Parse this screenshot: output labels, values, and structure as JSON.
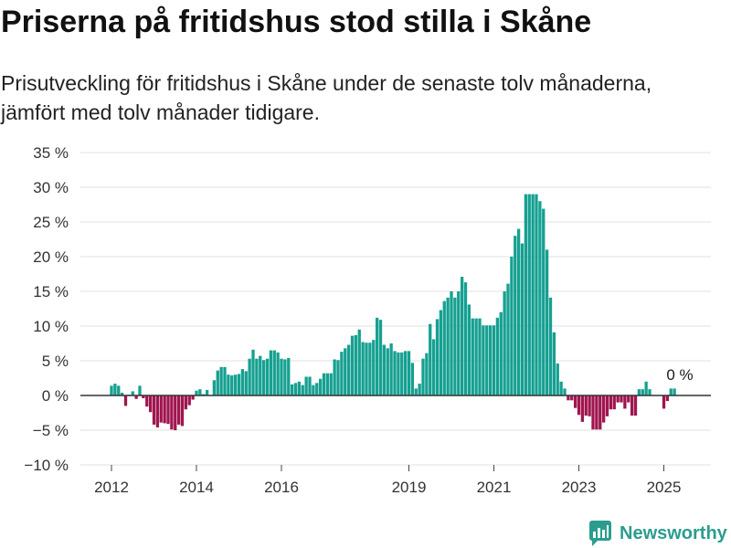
{
  "chart_data": {
    "type": "bar",
    "title": "Priserna på fritidshus stod stilla i Skåne",
    "subtitle": "Prisutveckling för fritidshus i Skåne under de senaste tolv månaderna, jämfört med tolv månader tidigare.",
    "x": [
      "2012-01",
      "2012-02",
      "2012-03",
      "2012-04",
      "2012-05",
      "2012-06",
      "2012-07",
      "2012-08",
      "2012-09",
      "2012-10",
      "2012-11",
      "2012-12",
      "2013-01",
      "2013-02",
      "2013-03",
      "2013-04",
      "2013-05",
      "2013-06",
      "2013-07",
      "2013-08",
      "2013-09",
      "2013-10",
      "2013-11",
      "2013-12",
      "2014-01",
      "2014-02",
      "2014-03",
      "2014-04",
      "2014-05",
      "2014-06",
      "2014-07",
      "2014-08",
      "2014-09",
      "2014-10",
      "2014-11",
      "2014-12",
      "2015-01",
      "2015-02",
      "2015-03",
      "2015-04",
      "2015-05",
      "2015-06",
      "2015-07",
      "2015-08",
      "2015-09",
      "2015-10",
      "2015-11",
      "2015-12",
      "2016-01",
      "2016-02",
      "2016-03",
      "2016-04",
      "2016-05",
      "2016-06",
      "2016-07",
      "2016-08",
      "2016-09",
      "2016-10",
      "2016-11",
      "2016-12",
      "2017-01",
      "2017-02",
      "2017-03",
      "2017-04",
      "2017-05",
      "2017-06",
      "2017-07",
      "2017-08",
      "2017-09",
      "2017-10",
      "2017-11",
      "2017-12",
      "2018-01",
      "2018-02",
      "2018-03",
      "2018-04",
      "2018-05",
      "2018-06",
      "2018-07",
      "2018-08",
      "2018-09",
      "2018-10",
      "2018-11",
      "2018-12",
      "2019-01",
      "2019-02",
      "2019-03",
      "2019-04",
      "2019-05",
      "2019-06",
      "2019-07",
      "2019-08",
      "2019-09",
      "2019-10",
      "2019-11",
      "2019-12",
      "2020-01",
      "2020-02",
      "2020-03",
      "2020-04",
      "2020-05",
      "2020-06",
      "2020-07",
      "2020-08",
      "2020-09",
      "2020-10",
      "2020-11",
      "2020-12",
      "2021-01",
      "2021-02",
      "2021-03",
      "2021-04",
      "2021-05",
      "2021-06",
      "2021-07",
      "2021-08",
      "2021-09",
      "2021-10",
      "2021-11",
      "2021-12",
      "2022-01",
      "2022-02",
      "2022-03",
      "2022-04",
      "2022-05",
      "2022-06",
      "2022-07",
      "2022-08",
      "2022-09",
      "2022-10",
      "2022-11",
      "2022-12",
      "2023-01",
      "2023-02",
      "2023-03",
      "2023-04",
      "2023-05",
      "2023-06",
      "2023-07",
      "2023-08",
      "2023-09",
      "2023-10",
      "2023-11",
      "2023-12",
      "2024-01",
      "2024-02",
      "2024-03",
      "2024-04",
      "2024-05",
      "2024-06",
      "2024-07",
      "2024-08",
      "2024-09",
      "2024-10",
      "2024-11",
      "2024-12",
      "2025-01",
      "2025-02",
      "2025-03",
      "2025-04",
      "2025-05"
    ],
    "values": [
      1.4,
      1.7,
      1.4,
      0.4,
      -1.5,
      0.1,
      0.6,
      -0.5,
      1.4,
      -0.4,
      -1.6,
      -2.4,
      -4.2,
      -4.6,
      -3.9,
      -4.0,
      -4.1,
      -4.9,
      -5.0,
      -4.2,
      -4.4,
      -2.0,
      -1.4,
      -0.6,
      0.7,
      0.9,
      0.2,
      0.8,
      0.0,
      2.2,
      3.6,
      4.1,
      4.1,
      3.0,
      2.9,
      3.0,
      3.1,
      3.8,
      3.5,
      5.3,
      6.6,
      5.3,
      5.7,
      5.1,
      5.3,
      6.5,
      6.5,
      6.2,
      5.3,
      5.2,
      5.4,
      1.6,
      1.8,
      2.0,
      1.5,
      2.7,
      2.7,
      1.5,
      1.8,
      2.4,
      3.2,
      3.2,
      3.2,
      5.2,
      5.1,
      6.3,
      6.8,
      7.3,
      8.6,
      8.7,
      9.5,
      7.7,
      7.6,
      7.6,
      8.0,
      11.2,
      10.9,
      7.3,
      6.8,
      7.5,
      6.4,
      6.2,
      6.2,
      6.4,
      6.4,
      4.7,
      1.0,
      1.7,
      5.3,
      6.1,
      10.3,
      8.1,
      11.0,
      12.3,
      13.6,
      14.1,
      15.0,
      14.1,
      15.0,
      17.1,
      16.3,
      13.1,
      11.1,
      11.1,
      11.1,
      10.1,
      10.1,
      10.1,
      10.1,
      11.2,
      12.0,
      15.0,
      16.1,
      20.0,
      23.0,
      24.0,
      21.9,
      29.0,
      29.0,
      29.0,
      29.0,
      28.0,
      26.9,
      21.0,
      14.1,
      9.1,
      4.6,
      2.0,
      1.0,
      -0.7,
      -0.7,
      -1.8,
      -2.8,
      -3.8,
      -2.9,
      -3.0,
      -4.9,
      -4.9,
      -4.9,
      -3.9,
      -3.0,
      -2.0,
      -2.0,
      -1.0,
      -1.0,
      -1.9,
      -1.0,
      -2.9,
      -2.9,
      0.9,
      0.9,
      2.0,
      0.9,
      0.0,
      0.0,
      0.0,
      -1.9,
      -0.8,
      1.0,
      1.0,
      0.0
    ],
    "ylim": [
      -10,
      35
    ],
    "yticks": [
      -10,
      -5,
      0,
      5,
      10,
      15,
      20,
      25,
      30,
      35
    ],
    "ytick_labels": [
      "−10 %",
      "−5 %",
      "0 %",
      "5 %",
      "10 %",
      "15 %",
      "20 %",
      "25 %",
      "30 %",
      "35 %"
    ],
    "xtick_labels": [
      "2012",
      "2014",
      "2016",
      "2019",
      "2021",
      "2023",
      "2025"
    ],
    "grid": true,
    "annotation": {
      "x": "2025-05",
      "y": 0,
      "text": "0 %"
    },
    "colors": {
      "positive": "#16a091",
      "negative": "#a0154f",
      "grid": "#e0e0e0",
      "zero_line": "#333333"
    }
  },
  "brand": {
    "name": "Newsworthy",
    "icon": "newsworthy-logo-icon",
    "color": "#2a9d8f"
  }
}
